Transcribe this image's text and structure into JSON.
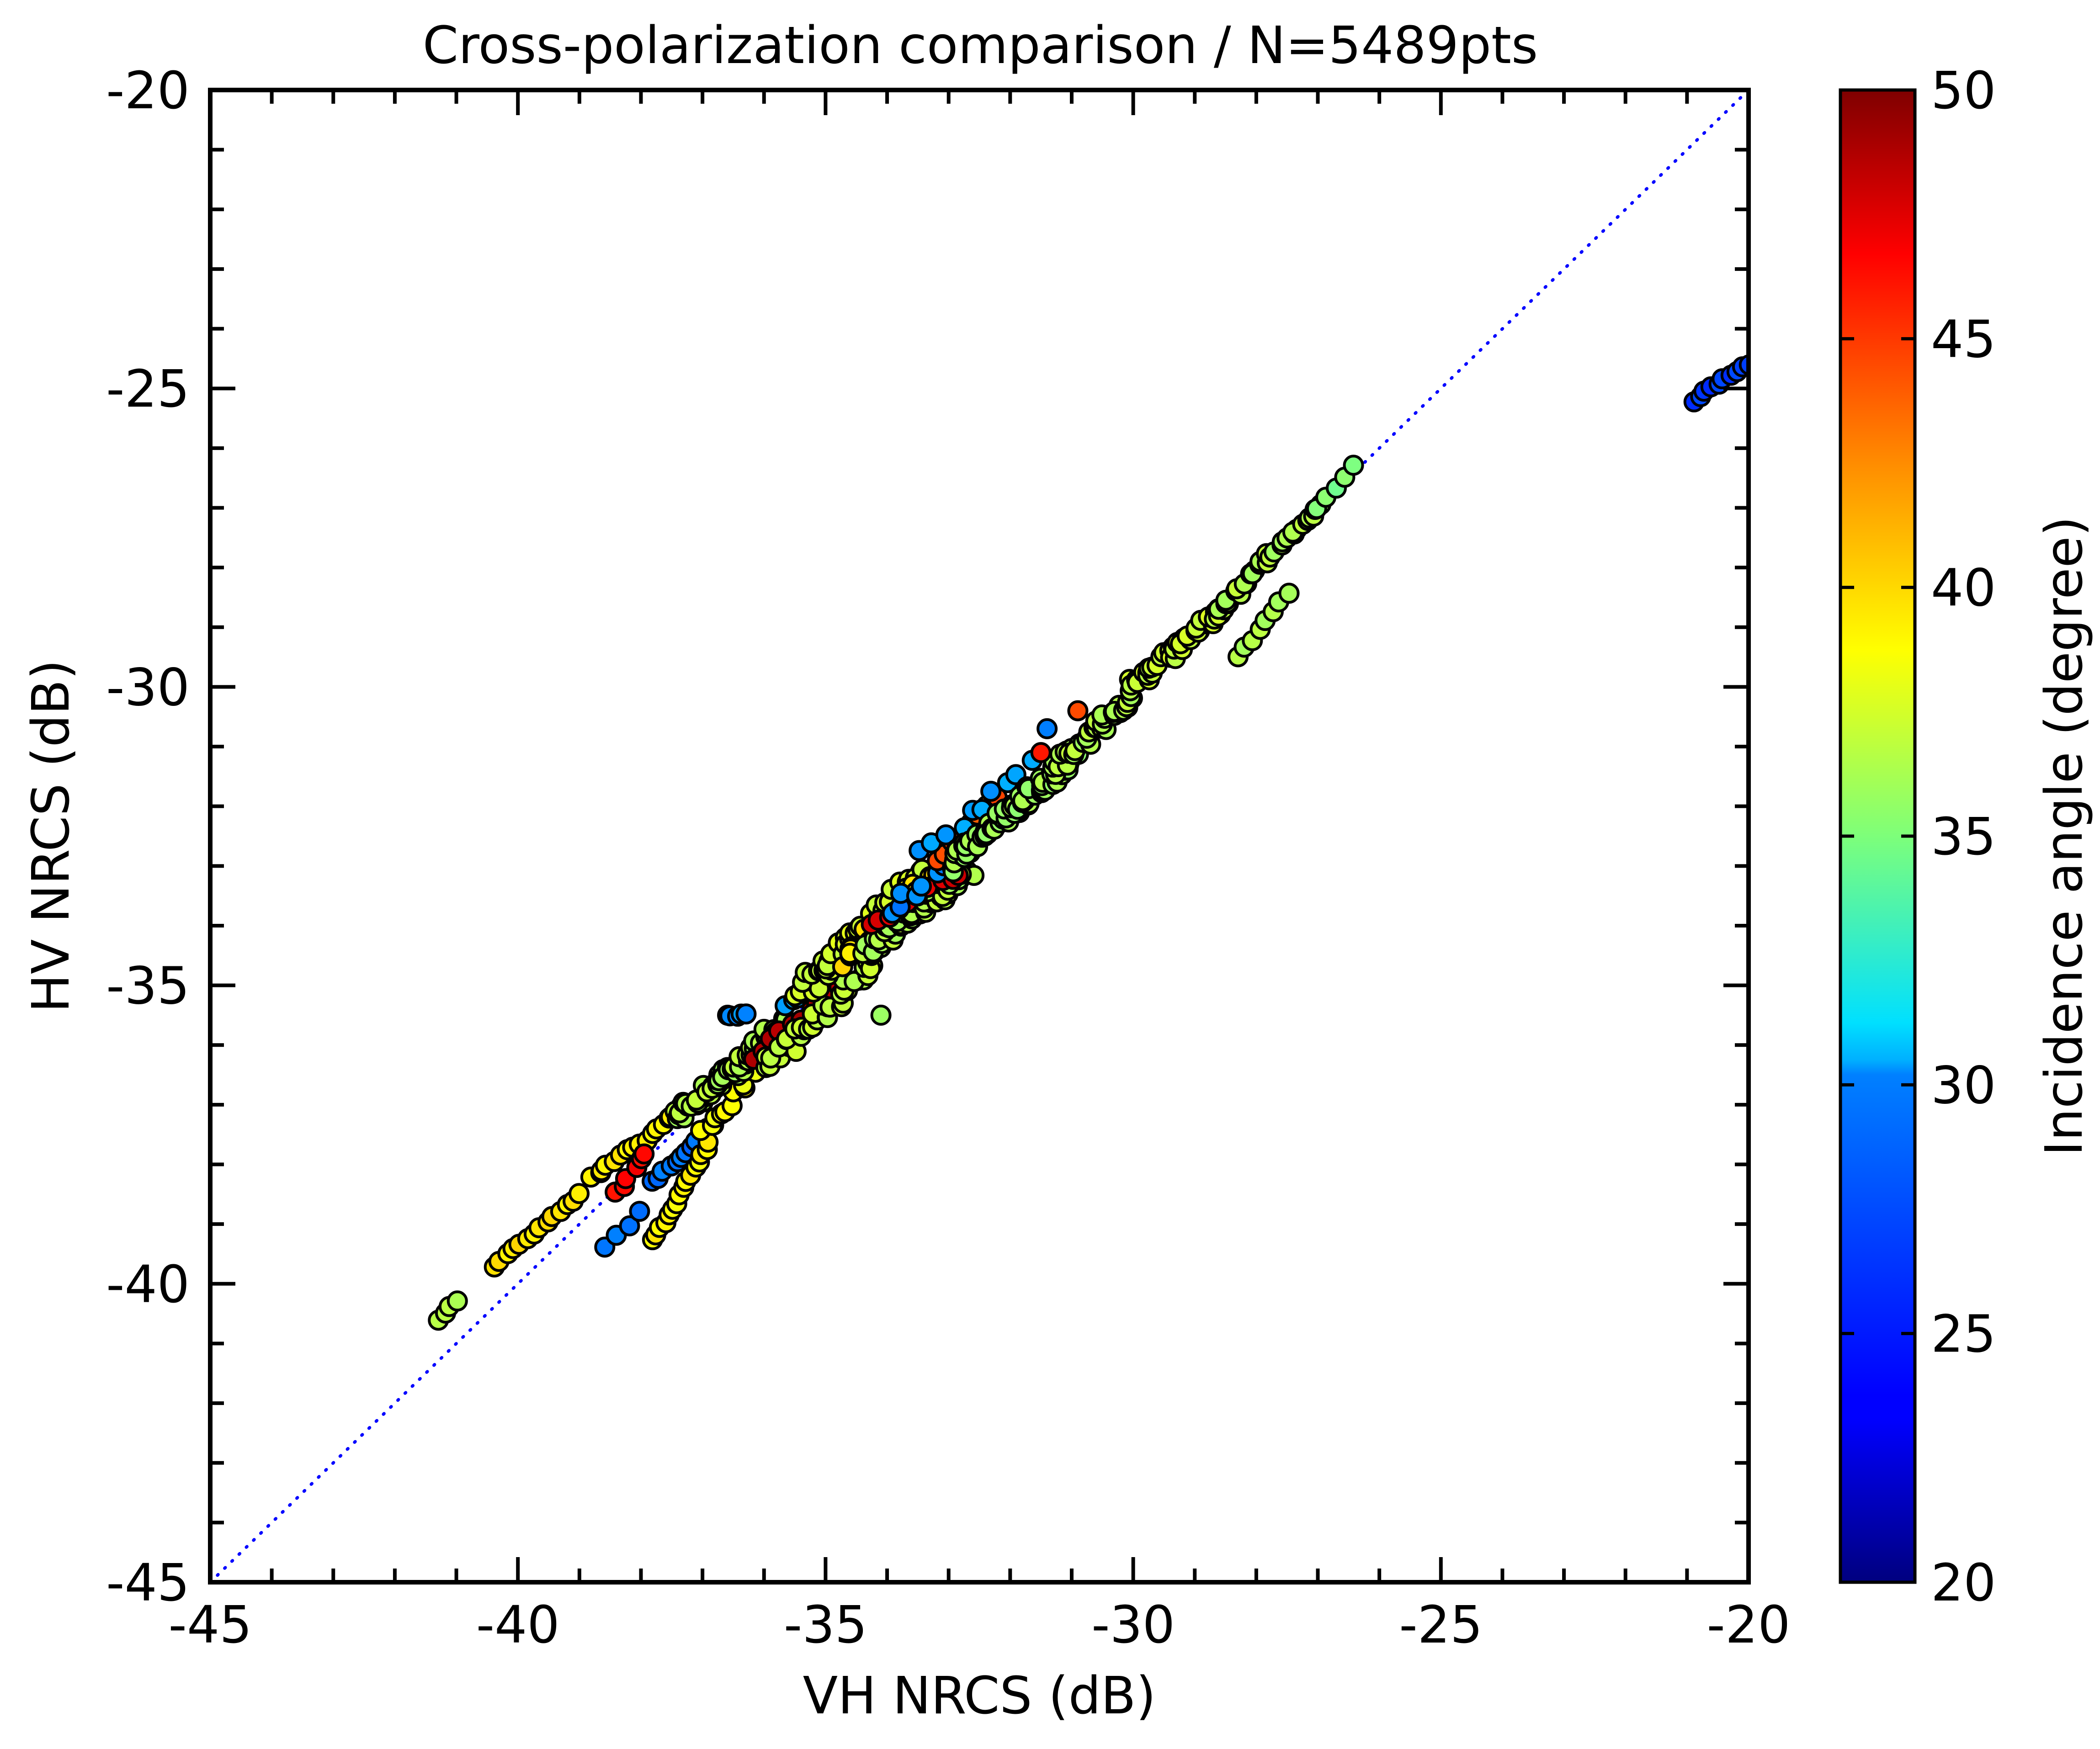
{
  "chart_data": {
    "type": "scatter",
    "title": "Cross-polarization comparison / N=5489pts",
    "xlabel": "VH NRCS (dB)",
    "ylabel": "HV NRCS (dB)",
    "xlim": [
      -45,
      -20
    ],
    "ylim": [
      -45,
      -20
    ],
    "xticks": [
      -45,
      -40,
      -35,
      -30,
      -25,
      -20
    ],
    "yticks": [
      -45,
      -40,
      -35,
      -30,
      -25,
      -20
    ],
    "xtick_labels": [
      "-45",
      "-40",
      "-35",
      "-30",
      "-25",
      "-20"
    ],
    "ytick_labels": [
      "-45",
      "-40",
      "-35",
      "-30",
      "-25",
      "-20"
    ],
    "reference_line": "1:1 identity line (dotted blue)",
    "colorbar": {
      "label": "Incidence angle (degree)",
      "range": [
        20,
        50
      ],
      "ticks": [
        20,
        25,
        30,
        35,
        40,
        45,
        50
      ],
      "tick_labels": [
        "20",
        "25",
        "30",
        "35",
        "40",
        "45",
        "50"
      ],
      "colormap": "jet"
    },
    "n_points_stated": 5489,
    "point_clusters": [
      {
        "x0": -41.3,
        "y0": -40.6,
        "x1": -41.0,
        "y1": -40.3,
        "n": 4,
        "angle": 36.5,
        "jitter": 0.05
      },
      {
        "x0": -40.4,
        "y0": -39.7,
        "x1": -39.0,
        "y1": -38.5,
        "n": 14,
        "angle": 39.5,
        "jitter": 0.06
      },
      {
        "x0": -38.8,
        "y0": -38.2,
        "x1": -37.2,
        "y1": -37.0,
        "n": 18,
        "angle": 39.2,
        "jitter": 0.12
      },
      {
        "x0": -38.4,
        "y0": -38.5,
        "x1": -37.9,
        "y1": -37.8,
        "n": 6,
        "angle": 46.0,
        "jitter": 0.1
      },
      {
        "x0": -38.6,
        "y0": -39.4,
        "x1": -38.0,
        "y1": -38.8,
        "n": 4,
        "angle": 27.0,
        "jitter": 0.08
      },
      {
        "x0": -37.8,
        "y0": -38.3,
        "x1": -36.8,
        "y1": -37.3,
        "n": 12,
        "angle": 27.0,
        "jitter": 0.1
      },
      {
        "x0": -37.8,
        "y0": -39.3,
        "x1": -36.9,
        "y1": -37.6,
        "n": 16,
        "angle": 39.0,
        "jitter": 0.08
      },
      {
        "x0": -37.0,
        "y0": -37.5,
        "x1": -36.2,
        "y1": -36.5,
        "n": 10,
        "angle": 38.5,
        "jitter": 0.15
      },
      {
        "x0": -37.4,
        "y0": -37.2,
        "x1": -35.6,
        "y1": -35.6,
        "n": 90,
        "angle": 36.5,
        "jitter": 0.25
      },
      {
        "x0": -36.6,
        "y0": -35.5,
        "x1": -36.3,
        "y1": -35.5,
        "n": 5,
        "angle": 28.0,
        "jitter": 0.06
      },
      {
        "x0": -36.2,
        "y0": -36.2,
        "x1": -34.8,
        "y1": -35.0,
        "n": 10,
        "angle": 48.5,
        "jitter": 0.1
      },
      {
        "x0": -36.0,
        "y0": -36.4,
        "x1": -34.2,
        "y1": -34.6,
        "n": 40,
        "angle": 36.8,
        "jitter": 0.25
      },
      {
        "x0": -35.7,
        "y0": -35.4,
        "x1": -34.6,
        "y1": -34.4,
        "n": 12,
        "angle": 28.5,
        "jitter": 0.2
      },
      {
        "x0": -35.4,
        "y0": -35.1,
        "x1": -33.4,
        "y1": -33.1,
        "n": 70,
        "angle": 37.5,
        "jitter": 0.3
      },
      {
        "x0": -34.8,
        "y0": -34.6,
        "x1": -33.0,
        "y1": -33.0,
        "n": 30,
        "angle": 39.5,
        "jitter": 0.3
      },
      {
        "x0": -34.4,
        "y0": -34.5,
        "x1": -32.7,
        "y1": -33.0,
        "n": 80,
        "angle": 36.5,
        "jitter": 0.3
      },
      {
        "x0": -34.3,
        "y0": -34.0,
        "x1": -32.8,
        "y1": -33.1,
        "n": 10,
        "angle": 47.5,
        "jitter": 0.12
      },
      {
        "x0": -34.0,
        "y0": -33.8,
        "x1": -32.4,
        "y1": -32.4,
        "n": 12,
        "angle": 27.5,
        "jitter": 0.2
      },
      {
        "x0": -33.2,
        "y0": -32.9,
        "x1": -32.2,
        "y1": -31.9,
        "n": 8,
        "angle": 44.0,
        "jitter": 0.12
      },
      {
        "x0": -33.4,
        "y0": -32.8,
        "x1": -31.7,
        "y1": -31.3,
        "n": 10,
        "angle": 28.5,
        "jitter": 0.18
      },
      {
        "x0": -33.0,
        "y0": -33.0,
        "x1": -31.0,
        "y1": -31.2,
        "n": 80,
        "angle": 36.0,
        "jitter": 0.25
      },
      {
        "x0": -31.3,
        "y0": -31.4,
        "x1": -30.0,
        "y1": -30.1,
        "n": 40,
        "angle": 36.5,
        "jitter": 0.2
      },
      {
        "x0": -30.0,
        "y0": -30.0,
        "x1": -28.5,
        "y1": -28.6,
        "n": 50,
        "angle": 37.2,
        "jitter": 0.2
      },
      {
        "x0": -28.6,
        "y0": -28.7,
        "x1": -27.0,
        "y1": -27.0,
        "n": 30,
        "angle": 36.5,
        "jitter": 0.15
      },
      {
        "x0": -28.3,
        "y0": -29.5,
        "x1": -27.5,
        "y1": -28.4,
        "n": 8,
        "angle": 36.5,
        "jitter": 0.08
      },
      {
        "x0": -27.0,
        "y0": -27.0,
        "x1": -26.4,
        "y1": -26.3,
        "n": 5,
        "angle": 35.0,
        "jitter": 0.05
      },
      {
        "x0": -30.9,
        "y0": -30.4,
        "x1": -30.9,
        "y1": -30.4,
        "n": 1,
        "angle": 44.5,
        "jitter": 0.0
      },
      {
        "x0": -31.4,
        "y0": -30.7,
        "x1": -31.4,
        "y1": -30.7,
        "n": 1,
        "angle": 27.5,
        "jitter": 0.0
      },
      {
        "x0": -31.5,
        "y0": -31.1,
        "x1": -31.5,
        "y1": -31.1,
        "n": 1,
        "angle": 45.0,
        "jitter": 0.0
      },
      {
        "x0": -34.1,
        "y0": -35.5,
        "x1": -34.1,
        "y1": -35.5,
        "n": 1,
        "angle": 36.0,
        "jitter": 0.0
      },
      {
        "x0": -20.9,
        "y0": -25.2,
        "x1": -20.0,
        "y1": -24.6,
        "n": 10,
        "angle": 25.5,
        "jitter": 0.06
      }
    ]
  }
}
